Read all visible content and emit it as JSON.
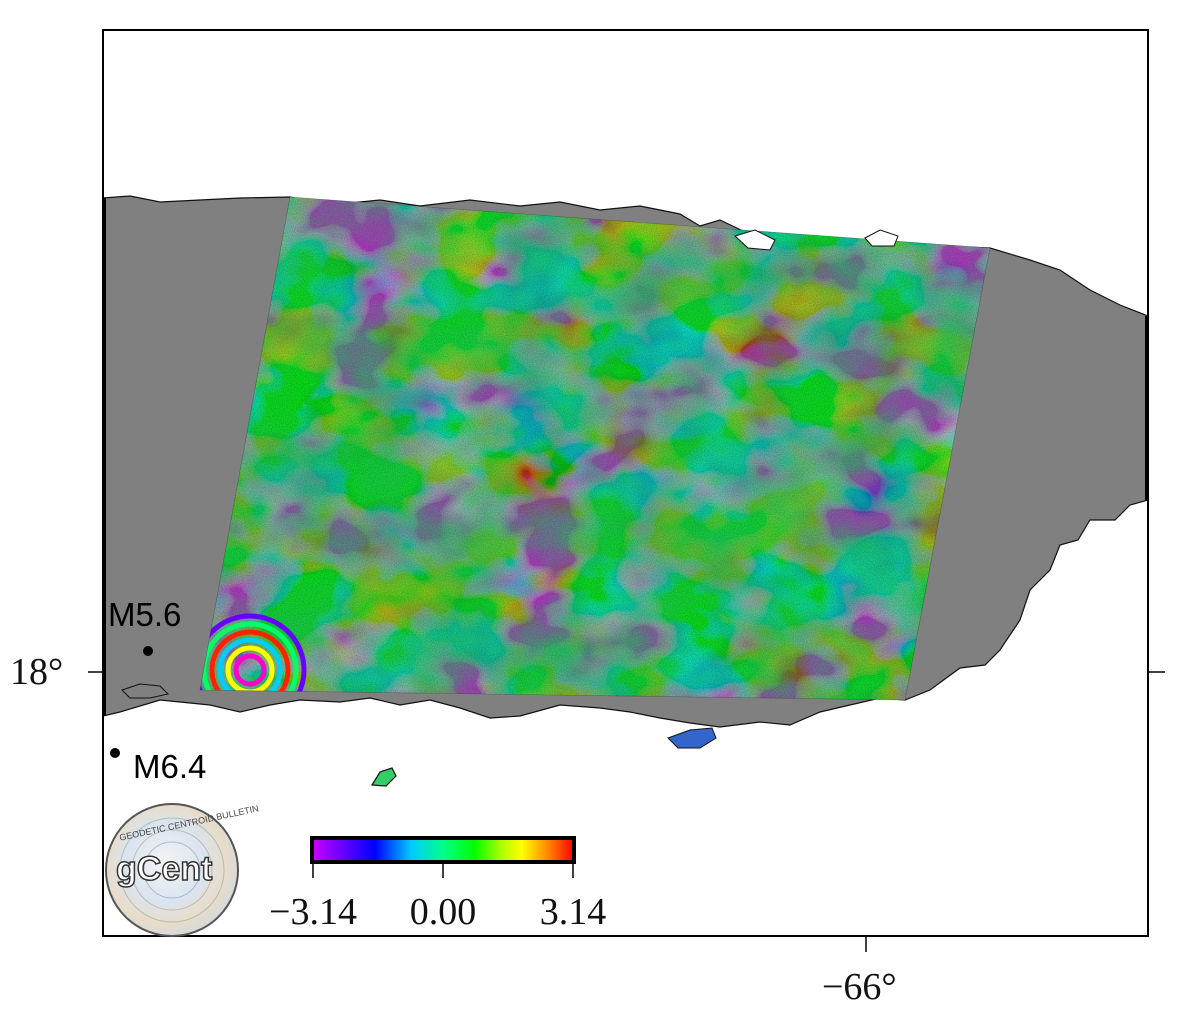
{
  "map": {
    "lat_tick": "18°",
    "lon_tick": "−66°",
    "land_color": "#808080",
    "frame_color": "#000000"
  },
  "earthquakes": [
    {
      "label": "M5.6"
    },
    {
      "label": "M6.4"
    }
  ],
  "colorbar": {
    "colormap": "rainbow",
    "colors": [
      "#cc00ff",
      "#6600ff",
      "#0000ff",
      "#00ccff",
      "#00ff88",
      "#00ff00",
      "#aaff00",
      "#ffff00",
      "#ff8800",
      "#ff0000"
    ],
    "ticks": [
      "−3.14",
      "0.00",
      "3.14"
    ]
  },
  "logo": {
    "text": "gCent",
    "ring_text": "GEODETIC CENTROID BULLETIN",
    "icon": "gcent-logo-icon"
  }
}
